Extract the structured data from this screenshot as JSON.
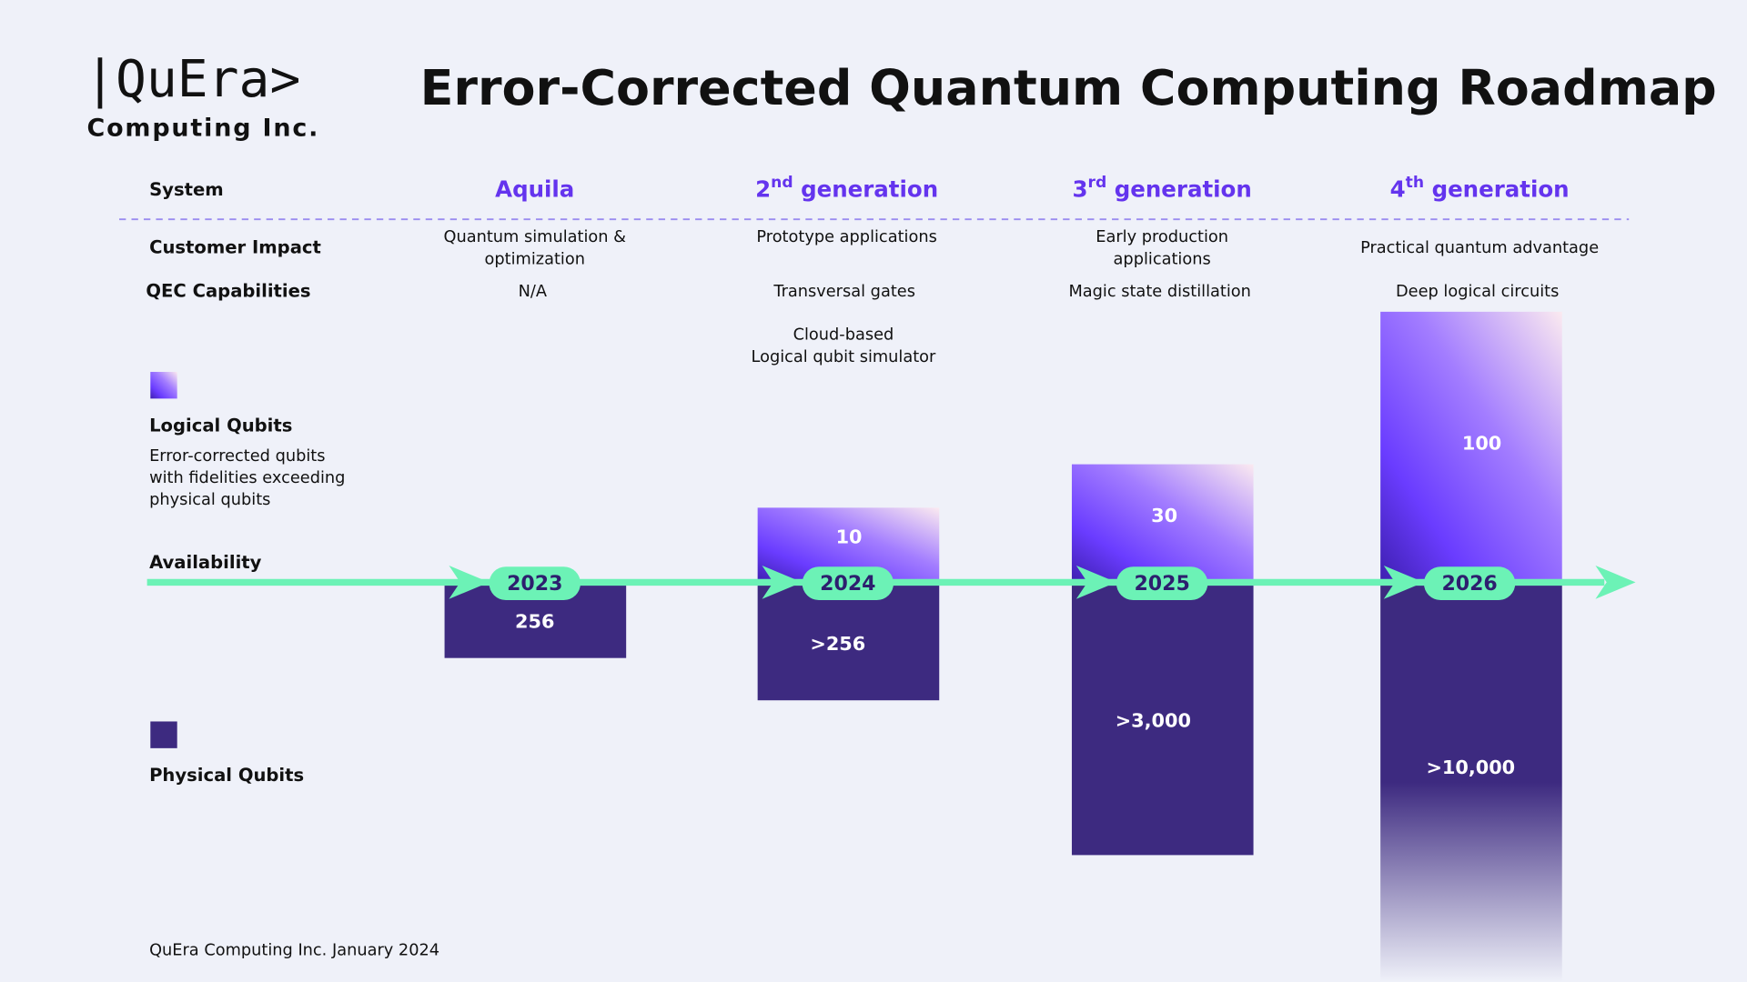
{
  "logo": {
    "name": "|QuEra>",
    "subtitle": "Computing Inc."
  },
  "title": "Error-Corrected Quantum Computing Roadmap",
  "row_labels": {
    "system": "System",
    "customer_impact": "Customer Impact",
    "qec": "QEC Capabilities",
    "availability": "Availability"
  },
  "legend": [
    {
      "label": "Logical Qubits",
      "description": [
        "Error-corrected qubits",
        "with fidelities exceeding",
        "physical qubits"
      ]
    },
    {
      "label": "Physical Qubits"
    }
  ],
  "systems": [
    {
      "name": "Aquila",
      "customer_impact": [
        "Quantum simulation &",
        "optimization"
      ],
      "qec": "N/A",
      "year": "2023",
      "physical_qubits": "256"
    },
    {
      "name": "2",
      "sup": "nd",
      "suffix": " generation",
      "customer_impact": [
        "Prototype applications"
      ],
      "qec": "Transversal gates",
      "extra": [
        "Cloud-based",
        "Logical qubit simulator"
      ],
      "year": "2024",
      "logical_qubits": "10",
      "physical_qubits": ">256"
    },
    {
      "name": "3",
      "sup": "rd",
      "suffix": " generation",
      "customer_impact": [
        "Early production",
        "applications"
      ],
      "qec": "Magic state distillation",
      "year": "2025",
      "logical_qubits": "30",
      "physical_qubits": ">3,000"
    },
    {
      "name": "4",
      "sup": "th",
      "suffix": " generation",
      "customer_impact": [
        "Practical quantum advantage"
      ],
      "qec": "Deep logical circuits",
      "year": "2026",
      "logical_qubits": "100",
      "physical_qubits": ">10,000"
    }
  ],
  "footer": "QuEra Computing Inc. January 2024"
}
